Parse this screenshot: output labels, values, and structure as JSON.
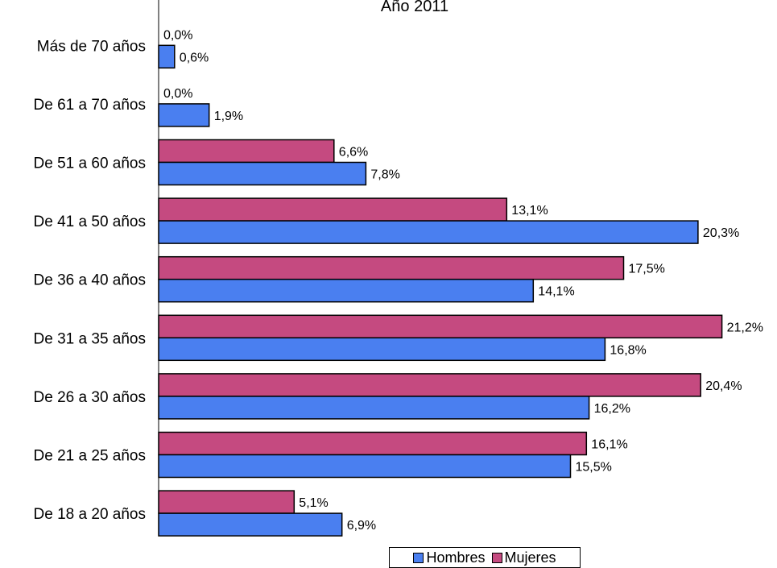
{
  "chart_data": {
    "type": "bar",
    "orientation": "horizontal",
    "title": "Año 2011",
    "categories": [
      "Más de 70 años",
      "De 61 a 70 años",
      "De 51 a 60 años",
      "De 41 a 50 años",
      "De 36 a 40 años",
      "De 31 a 35 años",
      "De 26 a 30 años",
      "De 21 a 25 años",
      "De 18 a 20 años"
    ],
    "series": [
      {
        "name": "Hombres",
        "color": "#4a7ff0",
        "values": [
          0.6,
          1.9,
          7.8,
          20.3,
          14.1,
          16.8,
          16.2,
          15.5,
          6.9
        ],
        "labels": [
          "0,6%",
          "1,9%",
          "7,8%",
          "20,3%",
          "14,1%",
          "16,8%",
          "16,2%",
          "15,5%",
          "6,9%"
        ]
      },
      {
        "name": "Mujeres",
        "color": "#c54a80",
        "values": [
          0.0,
          0.0,
          6.6,
          13.1,
          17.5,
          21.2,
          20.4,
          16.1,
          5.1
        ],
        "labels": [
          "0,0%",
          "0,0%",
          "6,6%",
          "13,1%",
          "17,5%",
          "21,2%",
          "20,4%",
          "16,1%",
          "5,1%"
        ]
      }
    ],
    "xlim": [
      0,
      22
    ],
    "grid": false,
    "legend_position": "bottom-center"
  }
}
